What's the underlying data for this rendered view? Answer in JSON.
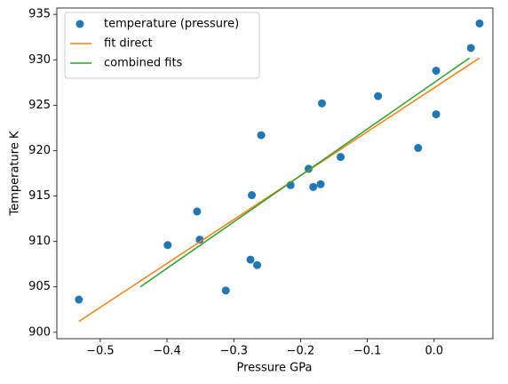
{
  "chart_data": {
    "type": "scatter",
    "xlabel": "Pressure GPa",
    "ylabel": "Temperature K",
    "xlim": [
      -0.565,
      0.088
    ],
    "ylim": [
      899.3,
      935.7
    ],
    "xticks": [
      {
        "value": -0.5,
        "label": "−0.5"
      },
      {
        "value": -0.4,
        "label": "−0.4"
      },
      {
        "value": -0.3,
        "label": "−0.3"
      },
      {
        "value": -0.2,
        "label": "−0.2"
      },
      {
        "value": -0.1,
        "label": "−0.1"
      },
      {
        "value": 0,
        "label": "0.0"
      }
    ],
    "yticks": [
      900,
      905,
      910,
      915,
      920,
      925,
      930,
      935
    ],
    "grid": false,
    "legend": "upper left",
    "series": [
      {
        "name": "temperature (pressure)",
        "type": "scatter",
        "color": "#1f77b4",
        "x": [
          -0.532,
          -0.399,
          -0.355,
          -0.351,
          -0.312,
          -0.275,
          -0.265,
          -0.273,
          -0.259,
          -0.215,
          -0.188,
          -0.181,
          -0.17,
          -0.168,
          -0.14,
          -0.084,
          -0.024,
          0.003,
          0.003,
          0.055,
          0.068
        ],
        "values": [
          903.6,
          909.6,
          913.3,
          910.2,
          904.6,
          908.0,
          907.4,
          915.1,
          921.7,
          916.2,
          918.0,
          916.0,
          916.3,
          925.2,
          919.3,
          926.0,
          920.3,
          928.8,
          924.0,
          931.3,
          934.0
        ]
      },
      {
        "name": "fit direct",
        "type": "line",
        "color": "#ff7f0e",
        "x": [
          -0.532,
          0.068
        ],
        "values": [
          901.2,
          930.2
        ]
      },
      {
        "name": "combined fits",
        "type": "line",
        "color": "#2ca02c",
        "x": [
          -0.44,
          0.053
        ],
        "values": [
          905.0,
          930.2
        ]
      }
    ]
  }
}
